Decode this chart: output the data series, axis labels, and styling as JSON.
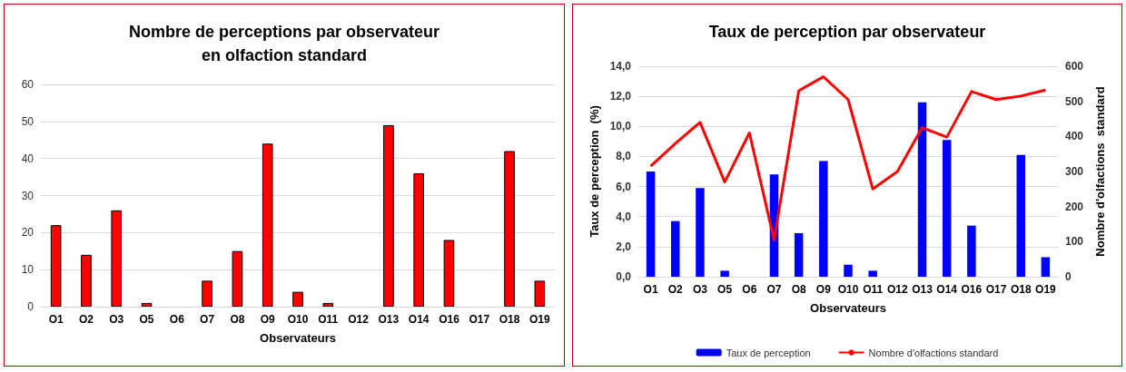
{
  "chart_data": [
    {
      "type": "bar",
      "title": "Nombre de perceptions par observateur\nen olfaction standard",
      "xlabel": "Observateurs",
      "categories": [
        "O1",
        "O2",
        "O3",
        "O5",
        "O6",
        "O7",
        "O8",
        "O9",
        "O10",
        "O11",
        "O12",
        "O13",
        "O14",
        "O16",
        "O17",
        "O18",
        "O19"
      ],
      "series": [
        {
          "color": "#ff0000",
          "values": [
            22,
            14,
            26,
            1,
            0,
            7,
            15,
            44,
            4,
            1,
            0,
            49,
            36,
            18,
            0,
            42,
            7
          ]
        }
      ],
      "ylim": [
        0,
        60
      ],
      "yticks": [
        0,
        10,
        20,
        30,
        40,
        50,
        60
      ],
      "grid": "y",
      "legend": false
    },
    {
      "type": "bar",
      "title": "Taux de perception par observateur",
      "xlabel": "Observateurs",
      "ylabel": "Taux de perception  (%)",
      "y2label": "Nombre d'olfactions  standard",
      "categories": [
        "O1",
        "O2",
        "O3",
        "O5",
        "O6",
        "O7",
        "O8",
        "O9",
        "O10",
        "O11",
        "O12",
        "O13",
        "O14",
        "O16",
        "O17",
        "O18",
        "O19"
      ],
      "series": [
        {
          "name": "Taux de perception",
          "color": "#0000ff",
          "values": [
            7.0,
            3.7,
            5.9,
            0.4,
            0,
            6.8,
            2.9,
            7.7,
            0.8,
            0.4,
            0,
            11.6,
            9.1,
            3.4,
            0,
            8.1,
            1.3
          ]
        },
        {
          "name": "Nombre d'olfactions standard",
          "type": "line",
          "axis": "y2",
          "color": "#ff0000",
          "values": [
            315,
            380,
            440,
            270,
            410,
            105,
            530,
            570,
            505,
            250,
            300,
            425,
            398,
            528,
            505,
            515,
            532
          ]
        }
      ],
      "ylim": [
        0,
        14
      ],
      "yticks": [
        {
          "value": 0,
          "label": "0,0"
        },
        {
          "value": 2,
          "label": "2,0"
        },
        {
          "value": 4,
          "label": "4,0"
        },
        {
          "value": 6,
          "label": "6,0"
        },
        {
          "value": 8,
          "label": "8,0"
        },
        {
          "value": 10,
          "label": "10,0"
        },
        {
          "value": 12,
          "label": "12,0"
        },
        {
          "value": 14,
          "label": "14,0"
        }
      ],
      "y2lim": [
        0,
        600
      ],
      "y2ticks": [
        0,
        100,
        200,
        300,
        400,
        500,
        600
      ],
      "grid": "y",
      "legend": "bottom",
      "marker": "none",
      "line_style": "solid"
    }
  ]
}
